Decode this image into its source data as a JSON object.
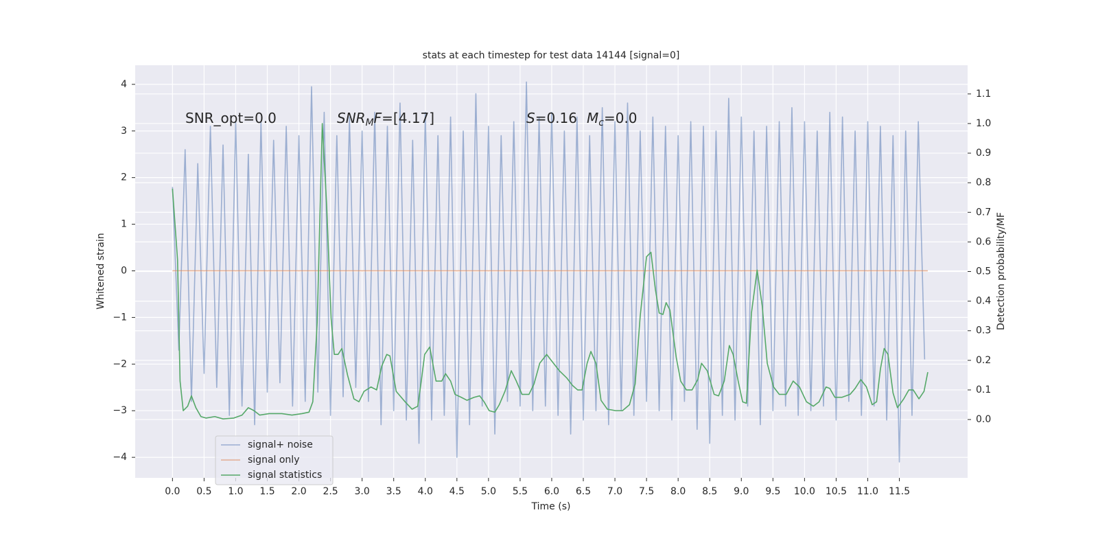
{
  "chart_data": {
    "type": "line",
    "title": "stats at each timestep for test data 14144 [signal=0]",
    "xlabel": "Time (s)",
    "ylabel": "Whitened strain",
    "y2label": "Detection probability/MF",
    "xlim": [
      -0.59,
      12.58
    ],
    "ylim": [
      -4.44,
      4.41
    ],
    "y2lim": [
      -0.197,
      1.197
    ],
    "xticks": [
      {
        "value": 0,
        "label": "0.0"
      },
      0.5,
      {
        "value": 1,
        "label": "1.0"
      },
      1.5,
      {
        "value": 2,
        "label": "2.0"
      },
      2.5,
      {
        "value": 3,
        "label": "3.0"
      },
      3.5,
      {
        "value": 4,
        "label": "4.0"
      },
      4.5,
      {
        "value": 5,
        "label": "5.0"
      },
      5.5,
      {
        "value": 6,
        "label": "6.0"
      },
      6.5,
      {
        "value": 7,
        "label": "7.0"
      },
      7.5,
      {
        "value": 8,
        "label": "8.0"
      },
      8.5,
      {
        "value": 9,
        "label": "9.0"
      },
      9.5,
      {
        "value": 10,
        "label": "10.0"
      },
      10.5,
      {
        "value": 11,
        "label": "11.0"
      },
      11.5
    ],
    "yticks": [
      {
        "value": -4,
        "label": "−4"
      },
      {
        "value": -3,
        "label": "−3"
      },
      {
        "value": -2,
        "label": "−2"
      },
      {
        "value": -1,
        "label": "−1"
      },
      0,
      1,
      2,
      3,
      4
    ],
    "y2ticks": [
      {
        "value": 0,
        "label": "0.0"
      },
      0.1,
      0.2,
      0.3,
      0.4,
      0.5,
      0.6,
      0.7,
      0.8,
      0.9,
      {
        "value": 1,
        "label": "1.0"
      },
      1.1
    ],
    "grid": true,
    "background": "#eaeaf2",
    "legend": "lower left",
    "annotations": [
      {
        "parts": [
          {
            "text": "SNR_opt=0.0",
            "style": "normal"
          }
        ]
      },
      {
        "parts": [
          {
            "text": "SNR",
            "style": "italic"
          },
          {
            "text": "M",
            "style": "sub"
          },
          {
            "text": "F",
            "style": "italic"
          },
          {
            "text": "=[4.17]",
            "style": "normal"
          }
        ]
      },
      {
        "parts": [
          {
            "text": "S",
            "style": "italic"
          },
          {
            "text": "=0.16",
            "style": "normal"
          },
          {
            "text": "M",
            "style": "italic"
          },
          {
            "text": "c",
            "style": "sub"
          },
          {
            "text": "=0.0",
            "style": "normal"
          }
        ]
      }
    ],
    "series": [
      {
        "name": "signal+ noise",
        "color": "#4c72b0",
        "opacity": 0.5,
        "x": [
          0,
          0.1,
          0.2,
          0.3,
          0.4,
          0.5,
          0.6,
          0.7,
          0.8,
          0.9,
          1,
          1.1,
          1.2,
          1.3,
          1.4,
          1.5,
          1.6,
          1.7,
          1.8,
          1.9,
          2,
          2.1,
          2.2,
          2.3,
          2.4,
          2.5,
          2.6,
          2.7,
          2.8,
          2.9,
          3,
          3.1,
          3.2,
          3.3,
          3.4,
          3.5,
          3.6,
          3.7,
          3.8,
          3.9,
          4,
          4.1,
          4.2,
          4.3,
          4.4,
          4.5,
          4.6,
          4.7,
          4.8,
          4.9,
          5,
          5.1,
          5.2,
          5.3,
          5.4,
          5.5,
          5.6,
          5.7,
          5.8,
          5.9,
          6,
          6.1,
          6.2,
          6.3,
          6.4,
          6.5,
          6.6,
          6.7,
          6.8,
          6.9,
          7,
          7.1,
          7.2,
          7.3,
          7.4,
          7.5,
          7.6,
          7.7,
          7.8,
          7.9,
          8,
          8.1,
          8.2,
          8.3,
          8.4,
          8.5,
          8.6,
          8.7,
          8.8,
          8.9,
          9,
          9.1,
          9.2,
          9.3,
          9.4,
          9.5,
          9.6,
          9.7,
          9.8,
          9.9,
          10,
          10.1,
          10.2,
          10.3,
          10.4,
          10.5,
          10.6,
          10.7,
          10.8,
          10.9,
          11,
          11.1,
          11.2,
          11.3,
          11.4,
          11.5,
          11.6,
          11.7,
          11.8,
          11.9
        ],
        "values": [
          1.8,
          -1.7,
          2.6,
          -2.8,
          2.3,
          -2.2,
          3.1,
          -2.5,
          2.7,
          -3.1,
          3.2,
          -2.9,
          2.5,
          -3.3,
          3.2,
          -2.6,
          2.8,
          -2.4,
          3.1,
          -2.9,
          2.9,
          -2.8,
          3.95,
          -2.6,
          3.4,
          -3.1,
          2.9,
          -2.7,
          3.3,
          -2.5,
          3.0,
          -2.8,
          3.4,
          -3.3,
          3.1,
          -3.0,
          3.6,
          -3.2,
          2.8,
          -3.7,
          3.4,
          -3.2,
          2.9,
          -3.1,
          3.3,
          -4.0,
          3.0,
          -3.3,
          3.8,
          -2.9,
          3.1,
          -3.5,
          2.9,
          -2.8,
          3.2,
          -2.9,
          4.05,
          -3.0,
          3.3,
          -2.9,
          3.4,
          -3.1,
          3.0,
          -3.5,
          3.3,
          -3.2,
          2.9,
          -3.0,
          3.5,
          -3.3,
          3.2,
          -3.0,
          3.6,
          -3.1,
          3.0,
          -2.8,
          3.3,
          -3.0,
          3.1,
          -3.2,
          2.9,
          -2.8,
          3.2,
          -3.4,
          3.1,
          -3.7,
          3.0,
          -3.1,
          3.7,
          -3.2,
          3.3,
          -2.9,
          3.0,
          -3.3,
          3.1,
          -3.0,
          3.2,
          -2.9,
          3.5,
          -3.1,
          3.2,
          -3.0,
          3.0,
          -2.9,
          3.4,
          -3.2,
          3.3,
          -2.8,
          3.0,
          -3.1,
          3.2,
          -2.9,
          3.1,
          -3.2,
          2.9,
          -4.1,
          3.0,
          -3.1,
          3.2,
          -1.9
        ]
      },
      {
        "name": "signal only",
        "color": "#dd8452",
        "opacity": 0.6,
        "x": [
          0,
          11.95
        ],
        "values": [
          0,
          0
        ]
      },
      {
        "name": "signal statistics",
        "color": "#55a868",
        "opacity": 1,
        "axis": "y2",
        "x": [
          0,
          0.08,
          0.12,
          0.17,
          0.24,
          0.3,
          0.37,
          0.45,
          0.53,
          0.67,
          0.8,
          0.97,
          1.1,
          1.2,
          1.29,
          1.38,
          1.53,
          1.73,
          1.89,
          2.05,
          2.16,
          2.22,
          2.29,
          2.37,
          2.44,
          2.51,
          2.56,
          2.62,
          2.68,
          2.77,
          2.87,
          2.95,
          3.03,
          3.14,
          3.23,
          3.31,
          3.39,
          3.44,
          3.54,
          3.68,
          3.79,
          3.88,
          3.93,
          3.99,
          4.07,
          4.17,
          4.26,
          4.32,
          4.4,
          4.47,
          4.57,
          4.66,
          4.77,
          4.86,
          4.93,
          5.01,
          5.1,
          5.17,
          5.26,
          5.36,
          5.44,
          5.53,
          5.64,
          5.72,
          5.81,
          5.92,
          6.01,
          6.12,
          6.24,
          6.33,
          6.41,
          6.48,
          6.56,
          6.62,
          6.7,
          6.78,
          6.88,
          7.01,
          7.12,
          7.23,
          7.32,
          7.4,
          7.5,
          7.57,
          7.64,
          7.7,
          7.76,
          7.81,
          7.87,
          7.97,
          8.04,
          8.13,
          8.22,
          8.31,
          8.37,
          8.46,
          8.57,
          8.64,
          8.73,
          8.81,
          8.87,
          8.95,
          9.02,
          9.08,
          9.16,
          9.25,
          9.33,
          9.41,
          9.51,
          9.6,
          9.71,
          9.82,
          9.92,
          10.03,
          10.14,
          10.23,
          10.34,
          10.4,
          10.48,
          10.59,
          10.72,
          10.8,
          10.89,
          10.98,
          11.07,
          11.14,
          11.2,
          11.26,
          11.32,
          11.4,
          11.47,
          11.57,
          11.65,
          11.72,
          11.81,
          11.89,
          11.95
        ],
        "values": [
          0.78,
          0.54,
          0.13,
          0.03,
          0.045,
          0.08,
          0.04,
          0.01,
          0.005,
          0.01,
          0.002,
          0.005,
          0.015,
          0.04,
          0.03,
          0.015,
          0.02,
          0.02,
          0.015,
          0.02,
          0.025,
          0.06,
          0.33,
          1.0,
          0.72,
          0.34,
          0.22,
          0.22,
          0.24,
          0.15,
          0.07,
          0.06,
          0.095,
          0.11,
          0.1,
          0.18,
          0.22,
          0.215,
          0.095,
          0.06,
          0.035,
          0.045,
          0.12,
          0.22,
          0.245,
          0.13,
          0.13,
          0.155,
          0.13,
          0.085,
          0.075,
          0.065,
          0.075,
          0.08,
          0.06,
          0.03,
          0.025,
          0.05,
          0.095,
          0.165,
          0.13,
          0.085,
          0.085,
          0.12,
          0.19,
          0.22,
          0.195,
          0.165,
          0.14,
          0.115,
          0.1,
          0.1,
          0.19,
          0.23,
          0.19,
          0.065,
          0.035,
          0.03,
          0.03,
          0.05,
          0.12,
          0.35,
          0.55,
          0.565,
          0.44,
          0.36,
          0.355,
          0.395,
          0.37,
          0.21,
          0.13,
          0.1,
          0.1,
          0.135,
          0.19,
          0.165,
          0.085,
          0.08,
          0.13,
          0.25,
          0.22,
          0.13,
          0.06,
          0.055,
          0.36,
          0.505,
          0.385,
          0.19,
          0.11,
          0.085,
          0.085,
          0.13,
          0.11,
          0.06,
          0.045,
          0.06,
          0.11,
          0.105,
          0.075,
          0.075,
          0.085,
          0.105,
          0.135,
          0.11,
          0.05,
          0.06,
          0.17,
          0.24,
          0.22,
          0.09,
          0.04,
          0.07,
          0.1,
          0.1,
          0.07,
          0.095,
          0.16
        ]
      }
    ]
  }
}
